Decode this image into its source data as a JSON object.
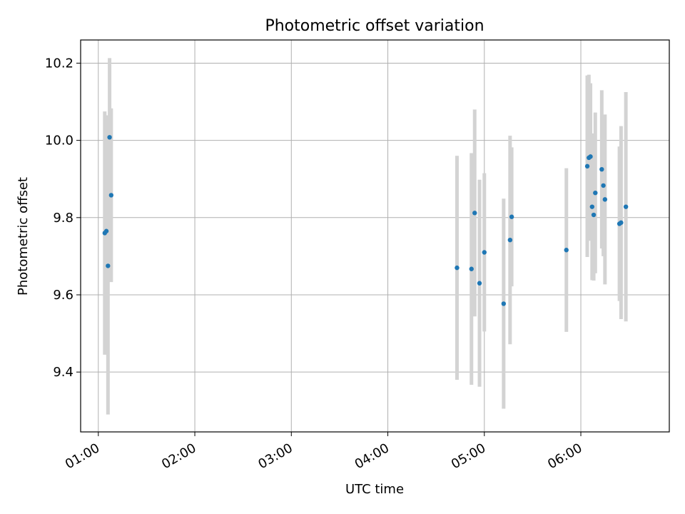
{
  "chart_data": {
    "type": "scatter",
    "title": "Photometric offset variation",
    "xlabel": "UTC time",
    "ylabel": "Photometric offset",
    "x_ticks": [
      "01:00",
      "02:00",
      "03:00",
      "04:00",
      "05:00",
      "06:00"
    ],
    "y_ticks": [
      "9.4",
      "9.6",
      "9.8",
      "10.0",
      "10.2"
    ],
    "xlim": [
      "00:49",
      "06:55"
    ],
    "ylim": [
      9.245,
      10.26
    ],
    "grid": true,
    "error_bars": true,
    "colors": {
      "marker": "#1f77b4",
      "error_bar": "#d3d3d3",
      "grid": "#b0b0b0"
    },
    "points": [
      {
        "x": "01:04",
        "y": 9.76,
        "err": 0.315
      },
      {
        "x": "01:05",
        "y": 9.765,
        "err": 0.3
      },
      {
        "x": "01:06",
        "y": 9.675,
        "err": 0.385
      },
      {
        "x": "01:07",
        "y": 10.008,
        "err": 0.205
      },
      {
        "x": "01:08",
        "y": 9.858,
        "err": 0.225
      },
      {
        "x": "04:43",
        "y": 9.67,
        "err": 0.29
      },
      {
        "x": "04:52",
        "y": 9.667,
        "err": 0.3
      },
      {
        "x": "04:54",
        "y": 9.812,
        "err": 0.268
      },
      {
        "x": "04:57",
        "y": 9.63,
        "err": 0.268
      },
      {
        "x": "05:00",
        "y": 9.71,
        "err": 0.205
      },
      {
        "x": "05:12",
        "y": 9.577,
        "err": 0.272
      },
      {
        "x": "05:16",
        "y": 9.742,
        "err": 0.27
      },
      {
        "x": "05:17",
        "y": 9.802,
        "err": 0.18
      },
      {
        "x": "05:51",
        "y": 9.716,
        "err": 0.212
      },
      {
        "x": "06:04",
        "y": 9.933,
        "err": 0.235
      },
      {
        "x": "06:05",
        "y": 9.955,
        "err": 0.215
      },
      {
        "x": "06:06",
        "y": 9.958,
        "err": 0.19
      },
      {
        "x": "06:07",
        "y": 9.828,
        "err": 0.19
      },
      {
        "x": "06:08",
        "y": 9.807,
        "err": 0.17
      },
      {
        "x": "06:09",
        "y": 9.864,
        "err": 0.208
      },
      {
        "x": "06:13",
        "y": 9.925,
        "err": 0.205
      },
      {
        "x": "06:14",
        "y": 9.883,
        "err": 0.183
      },
      {
        "x": "06:15",
        "y": 9.847,
        "err": 0.22
      },
      {
        "x": "06:24",
        "y": 9.784,
        "err": 0.2
      },
      {
        "x": "06:25",
        "y": 9.787,
        "err": 0.25
      },
      {
        "x": "06:28",
        "y": 9.828,
        "err": 0.297
      }
    ]
  }
}
